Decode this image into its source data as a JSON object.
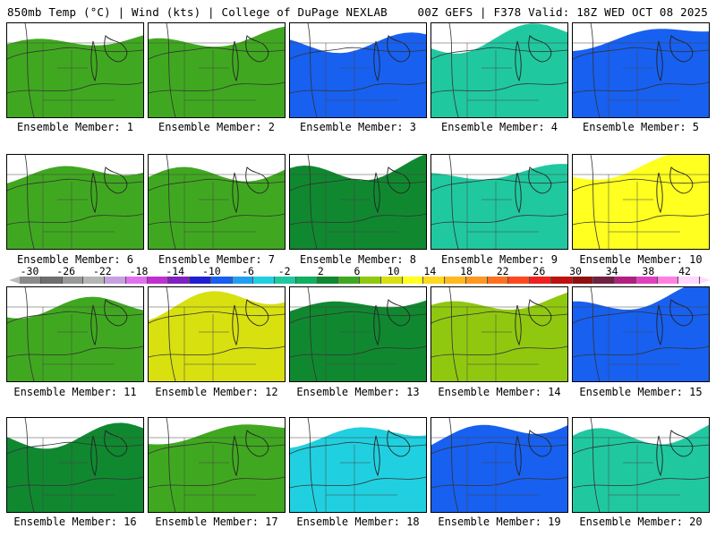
{
  "header": {
    "left": "850mb Temp (°C) | Wind (kts) | College of DuPage NEXLAB",
    "right": "00Z GEFS | F378 Valid: 18Z WED OCT 08 2025"
  },
  "colorbar": {
    "tick_labels": [
      "-30",
      "-26",
      "-22",
      "-18",
      "-14",
      "-10",
      "-6",
      "-2",
      "2",
      "6",
      "10",
      "14",
      "18",
      "22",
      "26",
      "30",
      "34",
      "38",
      "42"
    ],
    "colors": [
      "#8a8a8a",
      "#6e6e6e",
      "#999999",
      "#b5b5b5",
      "#c8a0e0",
      "#e070f0",
      "#c030d0",
      "#8020c0",
      "#2020d0",
      "#1860f0",
      "#20a0f0",
      "#20d0e0",
      "#20c8a0",
      "#10b060",
      "#108830",
      "#40a820",
      "#90c810",
      "#d8e010",
      "#ffff20",
      "#ffd820",
      "#ffb820",
      "#ff9820",
      "#ff7020",
      "#ff4820",
      "#f02020",
      "#c01010",
      "#901010",
      "#702040",
      "#b02080",
      "#e040c0",
      "#ff80e0",
      "#ffd8ff"
    ],
    "left_tip_color": "#bbbbbb",
    "right_tip_color": "#ffd8ff"
  },
  "members": [
    {
      "label": "Ensemble Member: 1",
      "colors": [
        "#ffb820",
        "#ffd820",
        "#ffff20",
        "#d8e010",
        "#90c810",
        "#40a820"
      ]
    },
    {
      "label": "Ensemble Member: 2",
      "colors": [
        "#ffb820",
        "#ffd820",
        "#ffff20",
        "#d8e010",
        "#90c810",
        "#40a820"
      ]
    },
    {
      "label": "Ensemble Member: 3",
      "colors": [
        "#90c810",
        "#40a820",
        "#20c8a0",
        "#20d0e0",
        "#20a0f0",
        "#1860f0"
      ]
    },
    {
      "label": "Ensemble Member: 4",
      "colors": [
        "#ff7020",
        "#ffb820",
        "#ffd820",
        "#ffff20",
        "#90c810",
        "#20c8a0"
      ]
    },
    {
      "label": "Ensemble Member: 5",
      "colors": [
        "#ffb820",
        "#ffd820",
        "#d8e010",
        "#40a820",
        "#20d0e0",
        "#1860f0"
      ]
    },
    {
      "label": "Ensemble Member: 6",
      "colors": [
        "#ff9820",
        "#ffb820",
        "#ffd820",
        "#ffff20",
        "#90c810",
        "#40a820"
      ]
    },
    {
      "label": "Ensemble Member: 7",
      "colors": [
        "#ffb820",
        "#ffd820",
        "#ffff20",
        "#d8e010",
        "#90c810",
        "#40a820"
      ]
    },
    {
      "label": "Ensemble Member: 8",
      "colors": [
        "#ffd820",
        "#ffff20",
        "#d8e010",
        "#90c810",
        "#40a820",
        "#108830"
      ]
    },
    {
      "label": "Ensemble Member: 9",
      "colors": [
        "#ffd820",
        "#ffff20",
        "#d8e010",
        "#90c810",
        "#40a820",
        "#20c8a0"
      ]
    },
    {
      "label": "Ensemble Member: 10",
      "colors": [
        "#f02020",
        "#ff7020",
        "#ff9820",
        "#ffb820",
        "#ffd820",
        "#ffff20"
      ]
    },
    {
      "label": "Ensemble Member: 11",
      "colors": [
        "#ffb820",
        "#ffd820",
        "#ffff20",
        "#d8e010",
        "#90c810",
        "#40a820"
      ]
    },
    {
      "label": "Ensemble Member: 12",
      "colors": [
        "#f02020",
        "#ff7020",
        "#ff9820",
        "#ffb820",
        "#ffd820",
        "#d8e010"
      ]
    },
    {
      "label": "Ensemble Member: 13",
      "colors": [
        "#ffd820",
        "#ffff20",
        "#d8e010",
        "#90c810",
        "#40a820",
        "#108830"
      ]
    },
    {
      "label": "Ensemble Member: 14",
      "colors": [
        "#ff9820",
        "#ffb820",
        "#ffd820",
        "#ffff20",
        "#d8e010",
        "#90c810"
      ]
    },
    {
      "label": "Ensemble Member: 15",
      "colors": [
        "#ffff20",
        "#d8e010",
        "#90c810",
        "#40a820",
        "#20c8a0",
        "#1860f0"
      ]
    },
    {
      "label": "Ensemble Member: 16",
      "colors": [
        "#ffd820",
        "#ffff20",
        "#d8e010",
        "#90c810",
        "#40a820",
        "#108830"
      ]
    },
    {
      "label": "Ensemble Member: 17",
      "colors": [
        "#ff7020",
        "#ffb820",
        "#ffd820",
        "#ffff20",
        "#90c810",
        "#40a820"
      ]
    },
    {
      "label": "Ensemble Member: 18",
      "colors": [
        "#ffd820",
        "#ffff20",
        "#90c810",
        "#40a820",
        "#20c8a0",
        "#20d0e0"
      ]
    },
    {
      "label": "Ensemble Member: 19",
      "colors": [
        "#ffd820",
        "#ffff20",
        "#90c810",
        "#40a820",
        "#20d0e0",
        "#1860f0"
      ]
    },
    {
      "label": "Ensemble Member: 20",
      "colors": [
        "#ffb820",
        "#ffd820",
        "#ffff20",
        "#d8e010",
        "#90c810",
        "#20c8a0"
      ]
    }
  ]
}
